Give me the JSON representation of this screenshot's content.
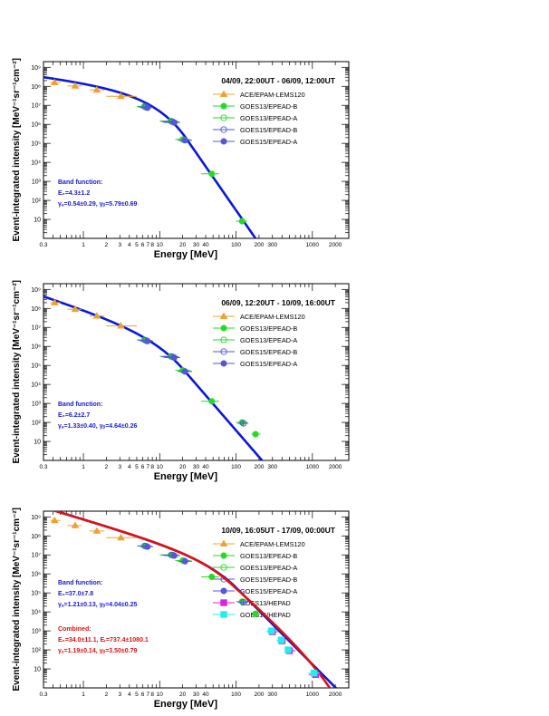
{
  "colors": {
    "ace": "#f0a030",
    "goes13_epead_b": "#22dd22",
    "goes13_epead_a": "#22dd22",
    "goes15_epead_b": "#5555dd",
    "goes15_epead_a": "#5555dd",
    "goes13_hepad": "#dd22dd",
    "goes15_hepad": "#22eeee",
    "band_fit": "#0a18d8",
    "combined_fit": "#dd1111",
    "band_text": "#1a1ad0",
    "combined_text": "#dd1111",
    "frame": "#000000"
  },
  "chart_data": [
    {
      "type": "scatter",
      "title": "04/09, 22:00UT - 06/09, 12:00UT",
      "xlabel": "Energy [MeV]",
      "ylabel": "Event-integrated intensity [MeV⁻¹sr⁻¹cm⁻²]",
      "x_scale": "log",
      "y_scale": "log",
      "xlim": [
        0.3,
        3000
      ],
      "ylim": [
        1,
        1000000000.0
      ],
      "x_tick_labels": [
        "0.3",
        "1",
        "2",
        "3",
        "4",
        "5",
        "6",
        "7",
        "8",
        "10",
        "20",
        "30",
        "40",
        "100",
        "200",
        "300",
        "1000",
        "2000"
      ],
      "y_tick_labels": [
        "10",
        "10²",
        "10³",
        "10⁴",
        "10⁵",
        "10⁶",
        "10⁷",
        "10⁸",
        "10⁹"
      ],
      "legend_placement": "top-right",
      "legend": [
        "ACE/EPAM-LEMS120",
        "GOES13/EPEAD-B",
        "GOES13/EPEAD-A",
        "GOES15/EPEAD-B",
        "GOES15/EPEAD-A"
      ],
      "annotation": {
        "heading": "Band function:",
        "line1": "E₀=4.3±1.2",
        "line2": "γₐ=0.54±0.29, γᵦ=5.79±0.69"
      },
      "series": [
        {
          "name": "ACE/EPAM-LEMS120",
          "marker": "triangle",
          "color_key": "ace",
          "x": [
            0.42,
            0.78,
            1.5,
            3.1
          ],
          "y": [
            160000000.0,
            105000000.0,
            65000000.0,
            30000000.0
          ],
          "xerr": [
            [
              0.37,
              0.5
            ],
            [
              0.62,
              0.95
            ],
            [
              1.2,
              1.9
            ],
            [
              2.0,
              5.0
            ]
          ]
        },
        {
          "name": "GOES13/EPEAD-B",
          "marker": "filled-circle",
          "color_key": "goes13_epead_b",
          "x": [
            6.3,
            14.0,
            20.0,
            48.0,
            120.0
          ],
          "y": [
            8800000.0,
            1500000.0,
            160000.0,
            2500.0,
            8.0
          ],
          "xerr": [
            [
              5.0,
              7.5
            ],
            [
              10,
              17
            ],
            [
              16,
              25
            ],
            [
              35,
              60
            ],
            [
              100,
              140
            ]
          ]
        },
        {
          "name": "GOES13/EPEAD-A",
          "marker": "open-circle",
          "color_key": "goes13_epead_a",
          "x": [
            6.7,
            15.0,
            21.0
          ],
          "y": [
            7800000.0,
            1300000.0,
            150000.0
          ],
          "xerr": [
            [
              5.5,
              8.0
            ],
            [
              11,
              18
            ],
            [
              17,
              26
            ]
          ]
        },
        {
          "name": "GOES15/EPEAD-B",
          "marker": "open-circle",
          "color_key": "goes15_epead_b",
          "x": [
            6.5,
            14.5
          ],
          "y": [
            8200000.0,
            1400000.0
          ],
          "xerr": [
            [
              5.2,
              7.8
            ],
            [
              10.5,
              17.5
            ]
          ]
        },
        {
          "name": "GOES15/EPEAD-A",
          "marker": "filled-circle",
          "color_key": "goes15_epead_a",
          "x": [
            6.9,
            15.5,
            21.5
          ],
          "y": [
            7500000.0,
            1250000.0,
            145000.0
          ],
          "xerr": [
            [
              5.6,
              8.2
            ],
            [
              11.5,
              18.5
            ],
            [
              17.5,
              26.5
            ]
          ]
        }
      ],
      "fits": [
        {
          "name": "Band",
          "color_key": "band_fit",
          "C": 170000000.0,
          "E0": 4.3,
          "ga": 0.54,
          "gb": 5.79
        }
      ]
    },
    {
      "type": "scatter",
      "title": "06/09, 12:20UT - 10/09, 16:00UT",
      "xlabel": "Energy [MeV]",
      "ylabel": "Event-integrated intensity [MeV⁻¹sr⁻¹cm⁻²]",
      "x_scale": "log",
      "y_scale": "log",
      "xlim": [
        0.3,
        3000
      ],
      "ylim": [
        1,
        1000000000.0
      ],
      "x_tick_labels": [
        "0.3",
        "1",
        "2",
        "3",
        "4",
        "5",
        "6",
        "7",
        "8",
        "10",
        "20",
        "30",
        "40",
        "100",
        "200",
        "300",
        "1000",
        "2000"
      ],
      "y_tick_labels": [
        "10",
        "10²",
        "10³",
        "10⁴",
        "10⁵",
        "10⁶",
        "10⁷",
        "10⁸",
        "10⁹"
      ],
      "legend_placement": "top-right",
      "legend": [
        "ACE/EPAM-LEMS120",
        "GOES13/EPEAD-B",
        "GOES13/EPEAD-A",
        "GOES15/EPEAD-B",
        "GOES15/EPEAD-A"
      ],
      "annotation": {
        "heading": "Band function:",
        "line1": "E₀=6.2±2.7",
        "line2": "γₐ=1.33±0.40, γᵦ=4.64±0.26"
      },
      "series": [
        {
          "name": "ACE/EPAM-LEMS120",
          "marker": "triangle",
          "color_key": "ace",
          "x": [
            0.42,
            0.78,
            1.5,
            3.1
          ],
          "y": [
            200000000.0,
            90000000.0,
            40000000.0,
            12000000.0
          ],
          "xerr": [
            [
              0.37,
              0.5
            ],
            [
              0.62,
              0.95
            ],
            [
              1.2,
              1.9
            ],
            [
              2.0,
              5.0
            ]
          ]
        },
        {
          "name": "GOES13/EPEAD-B",
          "marker": "filled-circle",
          "color_key": "goes13_epead_b",
          "x": [
            6.3,
            14.0,
            20.0,
            48.0,
            120.0,
            180.0
          ],
          "y": [
            2200000.0,
            300000.0,
            55000.0,
            1300.0,
            100.0,
            24.0
          ],
          "xerr": [
            [
              5.0,
              7.5
            ],
            [
              10,
              17
            ],
            [
              16,
              25
            ],
            [
              35,
              60
            ],
            [
              100,
              140
            ],
            [
              160,
              210
            ]
          ]
        },
        {
          "name": "GOES13/EPEAD-A",
          "marker": "open-circle",
          "color_key": "goes13_epead_a",
          "x": [
            6.7,
            15.0,
            21.0
          ],
          "y": [
            2000000.0,
            270000.0,
            50000.0
          ],
          "xerr": [
            [
              5.5,
              8.0
            ],
            [
              11,
              18
            ],
            [
              17,
              26
            ]
          ]
        },
        {
          "name": "GOES15/EPEAD-B",
          "marker": "open-circle",
          "color_key": "goes15_epead_b",
          "x": [
            6.5,
            14.5,
            125.0
          ],
          "y": [
            2100000.0,
            290000.0,
            90.0
          ],
          "xerr": [
            [
              5.2,
              7.8
            ],
            [
              10.5,
              17.5
            ],
            [
              105,
              145
            ]
          ]
        },
        {
          "name": "GOES15/EPEAD-A",
          "marker": "filled-circle",
          "color_key": "goes15_epead_a",
          "x": [
            6.9,
            15.5,
            21.5
          ],
          "y": [
            1900000.0,
            260000.0,
            48000.0
          ],
          "xerr": [
            [
              5.6,
              8.2
            ],
            [
              11.5,
              18.5
            ],
            [
              17.5,
              26.5
            ]
          ]
        }
      ],
      "fits": [
        {
          "name": "Band",
          "color_key": "band_fit",
          "C": 90000000.0,
          "E0": 6.2,
          "ga": 1.33,
          "gb": 4.64
        }
      ]
    },
    {
      "type": "scatter",
      "title": "10/09, 16:05UT - 17/09, 00:00UT",
      "xlabel": "Energy [MeV]",
      "ylabel": "Event-integrated intensity [MeV⁻¹sr⁻¹cm⁻²]",
      "x_scale": "log",
      "y_scale": "log",
      "xlim": [
        0.3,
        3000
      ],
      "ylim": [
        1,
        1000000000.0
      ],
      "x_tick_labels": [
        "0.3",
        "1",
        "2",
        "3",
        "4",
        "5",
        "6",
        "7",
        "8",
        "10",
        "20",
        "30",
        "40",
        "100",
        "200",
        "300",
        "1000",
        "2000"
      ],
      "y_tick_labels": [
        "10",
        "10²",
        "10³",
        "10⁴",
        "10⁵",
        "10⁶",
        "10⁷",
        "10⁸",
        "10⁹"
      ],
      "legend_placement": "top-right",
      "legend": [
        "ACE/EPAM-LEMS120",
        "GOES13/EPEAD-B",
        "GOES13/EPEAD-A",
        "GOES15/EPEAD-B",
        "GOES15/EPEAD-A",
        "GOES13/HEPAD",
        "GOES15/HEPAD"
      ],
      "annotation": {
        "heading": "Band function:",
        "line1": "E₀=37.0±7.8",
        "line2": "γₐ=1.21±0.13, γᵦ=4.04±0.25"
      },
      "annotation2": {
        "heading": "Combined:",
        "line1": "E₀=34.0±11.1, Eᵣ=737.4±1080.1",
        "line2": "γₐ=1.19±0.14, γᵦ=3.50±0.79"
      },
      "series": [
        {
          "name": "ACE/EPAM-LEMS120",
          "marker": "triangle",
          "color_key": "ace",
          "x": [
            0.42,
            0.78,
            1.5,
            3.1
          ],
          "y": [
            650000000.0,
            350000000.0,
            180000000.0,
            80000000.0
          ],
          "xerr": [
            [
              0.37,
              0.5
            ],
            [
              0.62,
              0.95
            ],
            [
              1.2,
              1.9
            ],
            [
              2.0,
              5.0
            ]
          ]
        },
        {
          "name": "GOES13/EPEAD-B",
          "marker": "filled-circle",
          "color_key": "goes13_epead_b",
          "x": [
            6.3,
            14.0,
            20.0,
            48.0,
            120.0,
            180.0
          ],
          "y": [
            30000000.0,
            10000000.0,
            5000000.0,
            700000.0,
            35000.0,
            8000.0
          ],
          "xerr": [
            [
              5.0,
              7.5
            ],
            [
              10,
              17
            ],
            [
              16,
              25
            ],
            [
              35,
              60
            ],
            [
              100,
              140
            ],
            [
              160,
              210
            ]
          ]
        },
        {
          "name": "GOES13/EPEAD-A",
          "marker": "open-circle",
          "color_key": "goes13_epead_a",
          "x": [
            6.7,
            15.0,
            21.0
          ],
          "y": [
            28000000.0,
            9500000.0,
            4800000.0
          ],
          "xerr": [
            [
              5.5,
              8.0
            ],
            [
              11,
              18
            ],
            [
              17,
              26
            ]
          ]
        },
        {
          "name": "GOES15/EPEAD-B",
          "marker": "open-circle",
          "color_key": "goes15_epead_b",
          "x": [
            6.5,
            14.5,
            125.0
          ],
          "y": [
            29000000.0,
            9800000.0,
            32000.0
          ],
          "xerr": [
            [
              5.2,
              7.8
            ],
            [
              10.5,
              17.5
            ],
            [
              105,
              145
            ]
          ]
        },
        {
          "name": "GOES15/EPEAD-A",
          "marker": "filled-circle",
          "color_key": "goes15_epead_a",
          "x": [
            6.9,
            15.5,
            21.5
          ],
          "y": [
            27000000.0,
            9200000.0,
            4600000.0
          ],
          "xerr": [
            [
              5.6,
              8.2
            ],
            [
              11.5,
              18.5
            ],
            [
              17.5,
              26.5
            ]
          ]
        },
        {
          "name": "GOES13/HEPAD",
          "marker": "filled-square",
          "color_key": "goes13_hepad",
          "x": [
            300.0,
            400.0,
            500.0,
            1100.0
          ],
          "y": [
            900.0,
            300.0,
            90.0,
            5.0
          ],
          "xerr": [
            [
              260,
              350
            ],
            [
              350,
              450
            ],
            [
              450,
              600
            ],
            [
              900,
              1300
            ]
          ]
        },
        {
          "name": "GOES15/HEPAD",
          "marker": "filled-square",
          "color_key": "goes15_hepad",
          "x": [
            290.0,
            390.0,
            480.0,
            1050.0
          ],
          "y": [
            1000.0,
            330.0,
            100.0,
            6.0
          ],
          "xerr": [
            [
              250,
              340
            ],
            [
              340,
              440
            ],
            [
              440,
              580
            ],
            [
              880,
              1250
            ]
          ]
        }
      ],
      "fits": [
        {
          "name": "Band",
          "color_key": "band_fit",
          "C": 750000000.0,
          "E0": 37.0,
          "ga": 1.21,
          "gb": 4.04
        },
        {
          "name": "Combined",
          "color_key": "combined_fit",
          "C": 750000000.0,
          "E0": 34.0,
          "ga": 1.19,
          "gb": 3.5,
          "Er": 737.4
        }
      ]
    }
  ]
}
